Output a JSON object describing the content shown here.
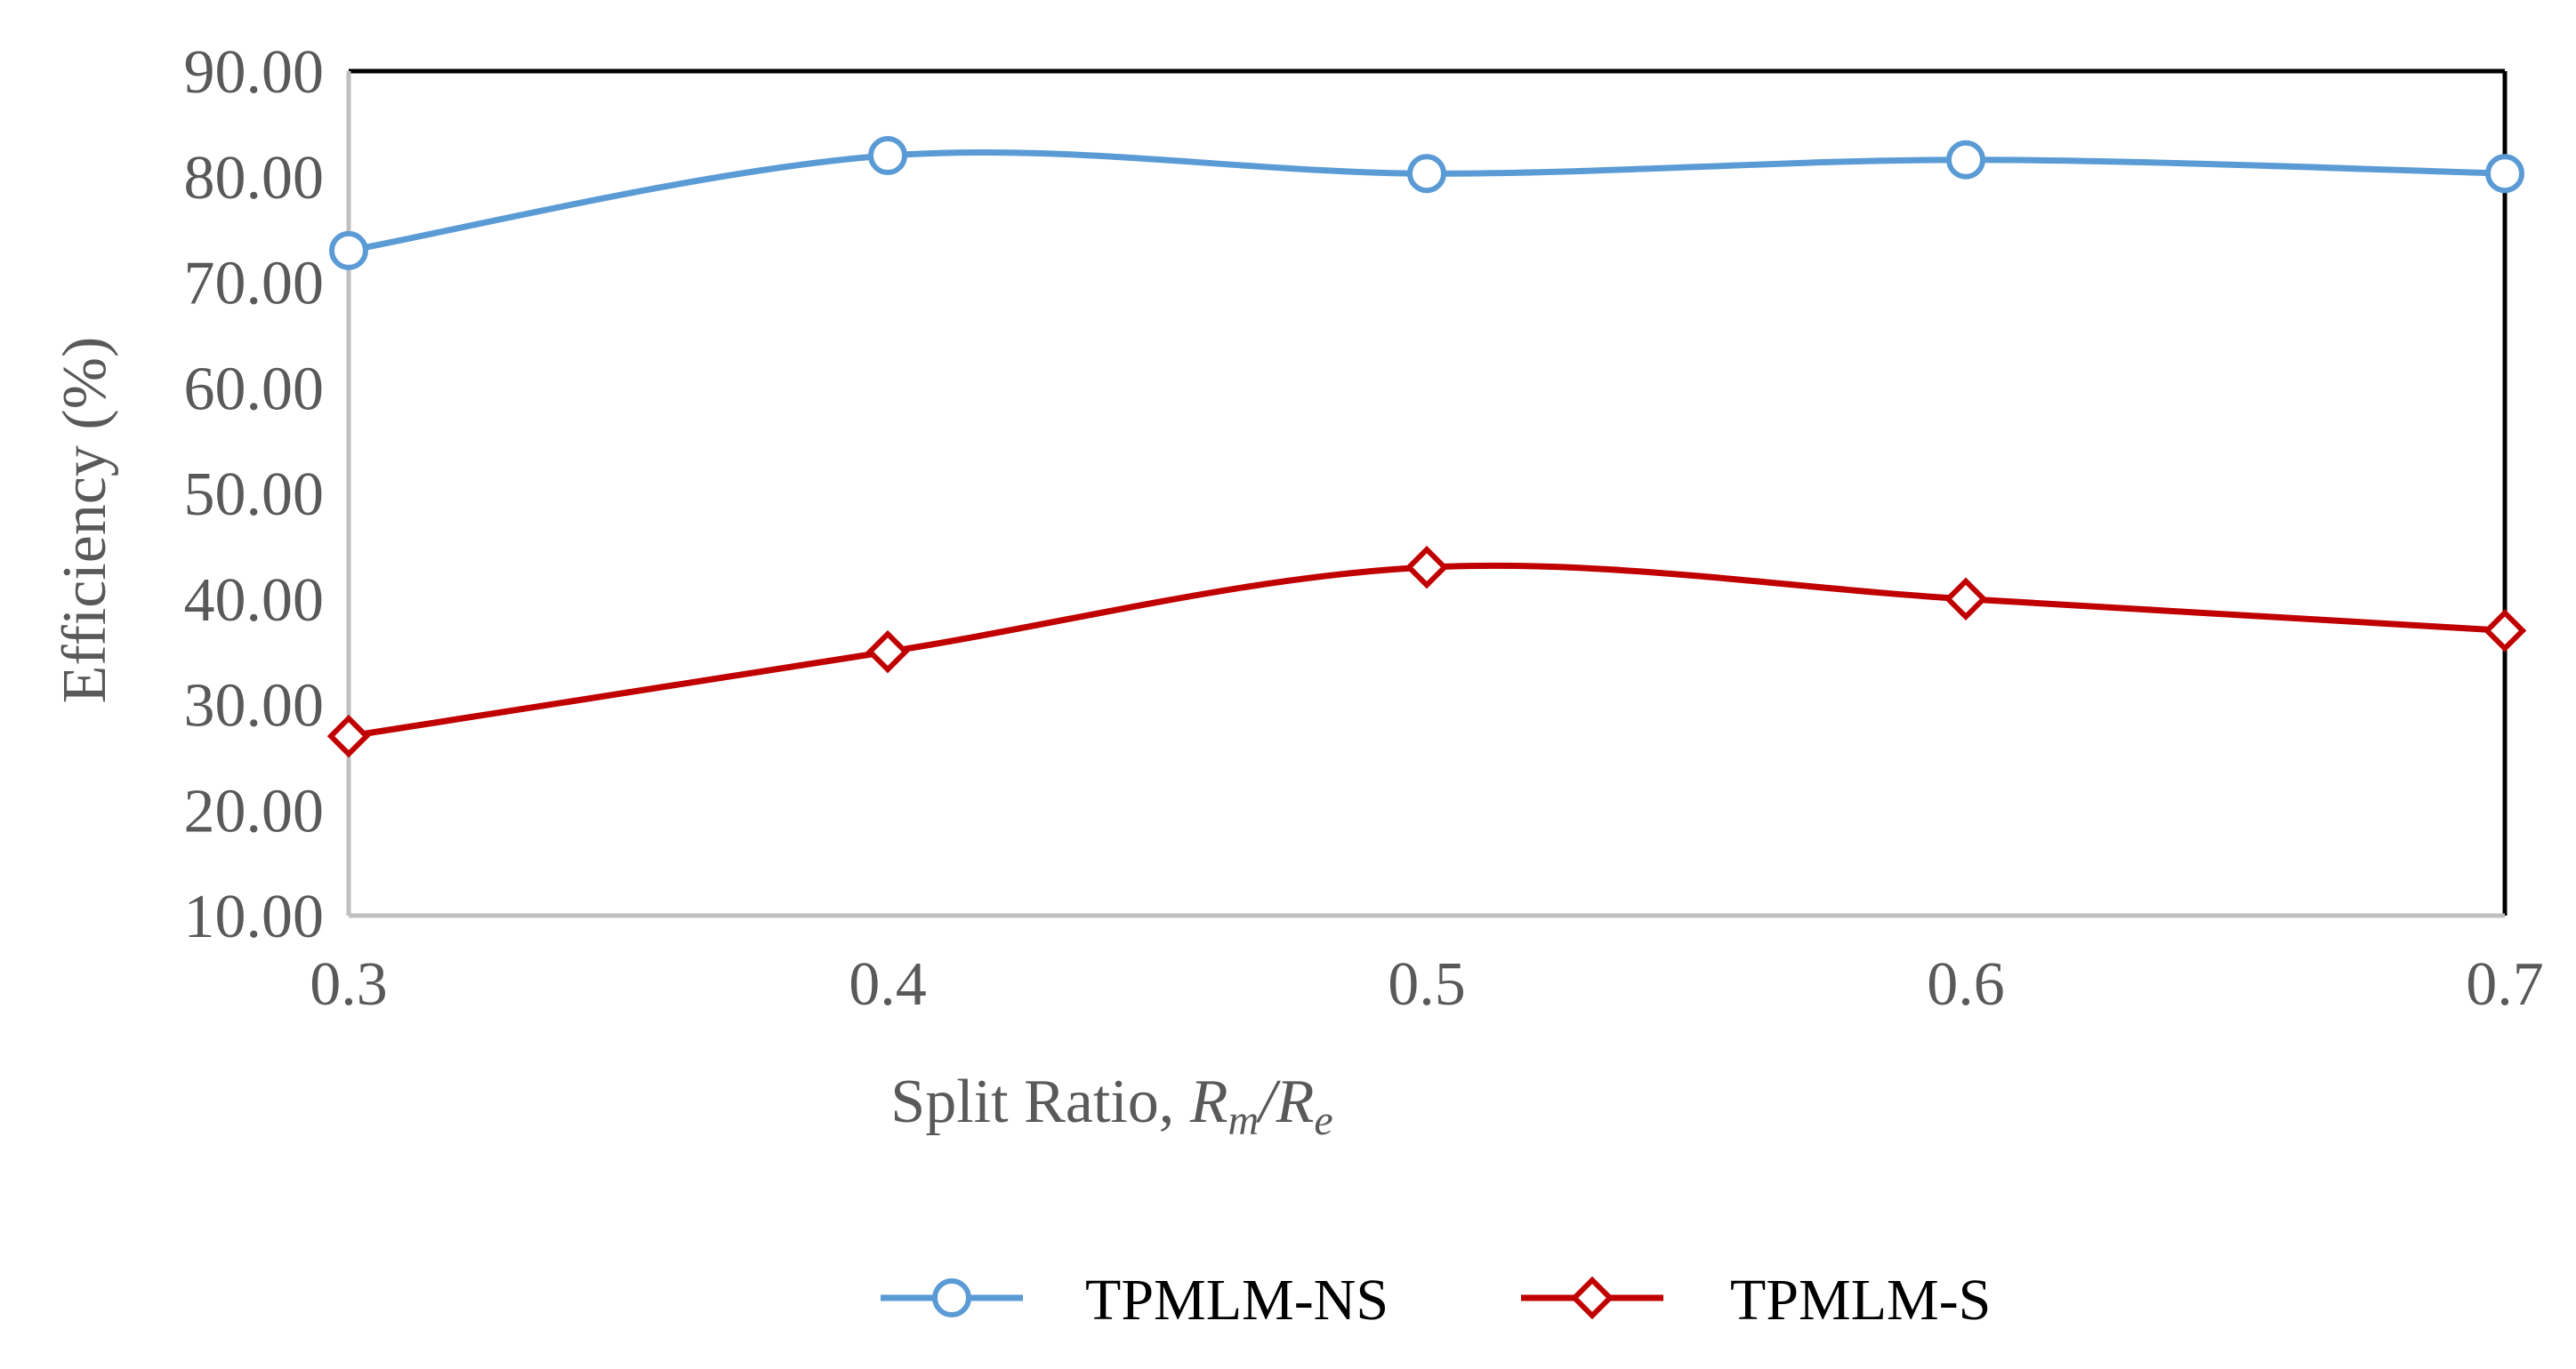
{
  "chart_data": {
    "type": "line",
    "title": "",
    "xlabel": "Split Ratio, R_m/R_e",
    "xlabel_parts": {
      "prefix": "Split Ratio, ",
      "r1": "R",
      "sub1": "m",
      "slash": "/",
      "r2": "R",
      "sub2": "e"
    },
    "ylabel": "Efficiency  (%)",
    "x": [
      0.3,
      0.4,
      0.5,
      0.6,
      0.7
    ],
    "x_tick_labels": [
      "0.3",
      "0.4",
      "0.5",
      "0.6",
      "0.7"
    ],
    "xlim": [
      0.3,
      0.7
    ],
    "ylim": [
      10,
      90
    ],
    "y_ticks": [
      10,
      20,
      30,
      40,
      50,
      60,
      70,
      80,
      90
    ],
    "y_tick_labels": [
      "10.00",
      "20.00",
      "30.00",
      "40.00",
      "50.00",
      "60.00",
      "70.00",
      "80.00",
      "90.00"
    ],
    "grid": false,
    "legend_position": "bottom-center",
    "series": [
      {
        "name": "TPMLM-NS",
        "values": [
          73.0,
          82.0,
          80.3,
          81.6,
          80.3
        ],
        "color": "#5B9BD5",
        "marker": "circle"
      },
      {
        "name": "TPMLM-S",
        "values": [
          27.0,
          35.0,
          43.0,
          40.0,
          37.0
        ],
        "color": "#C00000",
        "marker": "diamond"
      }
    ]
  }
}
